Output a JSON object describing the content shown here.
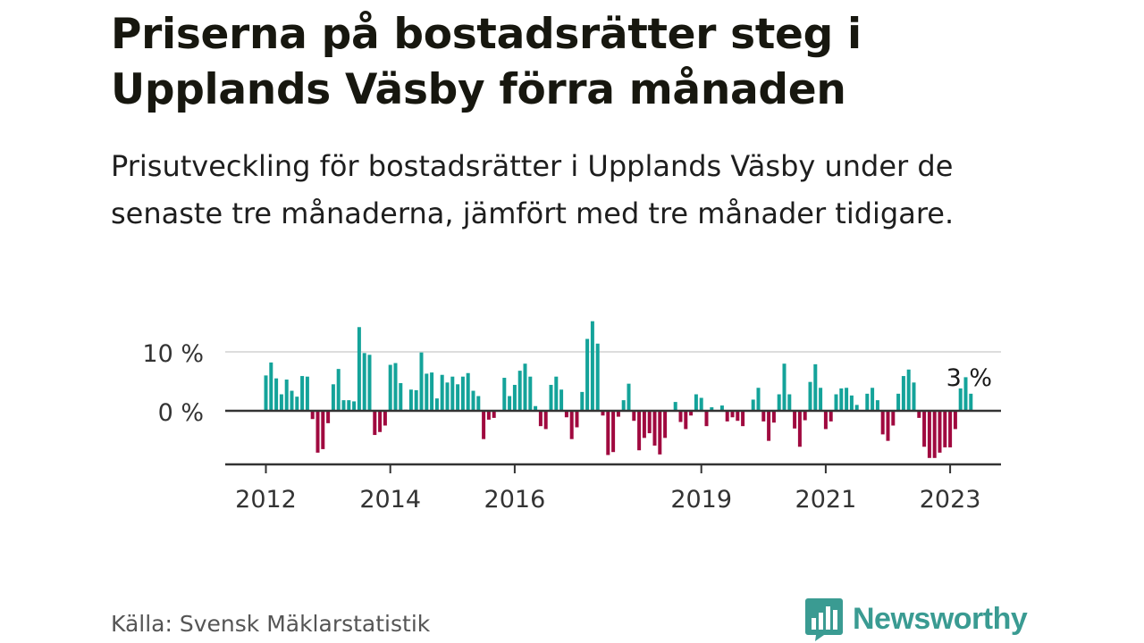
{
  "title": "Priserna på bostadsrätter steg i Upplands Väsby förra månaden",
  "subtitle": "Prisutveckling för bostadsrätter i Upplands Väsby under de senaste tre månaderna, jämfört med tre månader tidigare.",
  "source": "Källa: Svensk Mäklarstatistik",
  "brand": "Newsworthy",
  "colors": {
    "positive": "#14a39a",
    "negative": "#a0093f",
    "brand": "#3a9b92",
    "axis": "#333333",
    "grid": "#dddddd"
  },
  "chart_data": {
    "type": "bar",
    "title": "",
    "xlabel": "",
    "ylabel": "",
    "start": "2012-01",
    "ylim": [
      -9,
      16
    ],
    "y_ticks": [
      {
        "value": 0,
        "label": "0 %"
      },
      {
        "value": 10,
        "label": "10 %"
      }
    ],
    "x_ticks": [
      {
        "index": 0,
        "label": "2012"
      },
      {
        "index": 24,
        "label": "2014"
      },
      {
        "index": 48,
        "label": "2016"
      },
      {
        "index": 84,
        "label": "2019"
      },
      {
        "index": 108,
        "label": "2021"
      },
      {
        "index": 132,
        "label": "2023"
      }
    ],
    "annotation": {
      "label": "3 %",
      "index": 136
    },
    "values": [
      6,
      8.2,
      5.5,
      2.8,
      5.3,
      3.4,
      2.4,
      5.9,
      5.8,
      -1.4,
      -7.1,
      -6.5,
      -2.1,
      4.5,
      7.1,
      1.8,
      1.8,
      1.6,
      14.2,
      9.8,
      9.5,
      -4.1,
      -3.6,
      -2.5,
      7.8,
      8.1,
      4.7,
      0.2,
      3.6,
      3.5,
      9.9,
      6.3,
      6.5,
      2.1,
      6.1,
      4.8,
      5.8,
      4.5,
      5.8,
      6.4,
      3.4,
      2.5,
      -4.8,
      -1.5,
      -1.2,
      0,
      5.6,
      2.5,
      4.4,
      6.8,
      8,
      5.8,
      0.8,
      -2.6,
      -3.1,
      4.4,
      5.8,
      3.6,
      -1.1,
      -4.8,
      -2.8,
      3.2,
      12.2,
      15.2,
      11.4,
      -0.8,
      -7.5,
      -7,
      -1,
      1.8,
      4.6,
      -1.7,
      -6.7,
      -4.6,
      -3.8,
      -5.9,
      -7.4,
      -4.6,
      0,
      1.5,
      -1.9,
      -3.1,
      -0.8,
      2.8,
      2.2,
      -2.6,
      0.6,
      0,
      0.9,
      -1.8,
      -1.1,
      -1.7,
      -2.6,
      0,
      1.9,
      3.9,
      -1.8,
      -5.1,
      -2,
      2.8,
      8,
      2.8,
      -3,
      -6.1,
      -1.6,
      4.9,
      7.9,
      3.9,
      -3.1,
      -1.8,
      2.8,
      3.8,
      3.9,
      2.6,
      1,
      0,
      2.9,
      3.9,
      1.8,
      -4,
      -5.1,
      -2.5,
      2.9,
      5.9,
      7,
      4.8,
      -1.2,
      -6.1,
      -8,
      -8,
      -7.1,
      -6.2,
      -6.2,
      -3.1,
      3.8,
      5.7,
      2.9
    ]
  }
}
